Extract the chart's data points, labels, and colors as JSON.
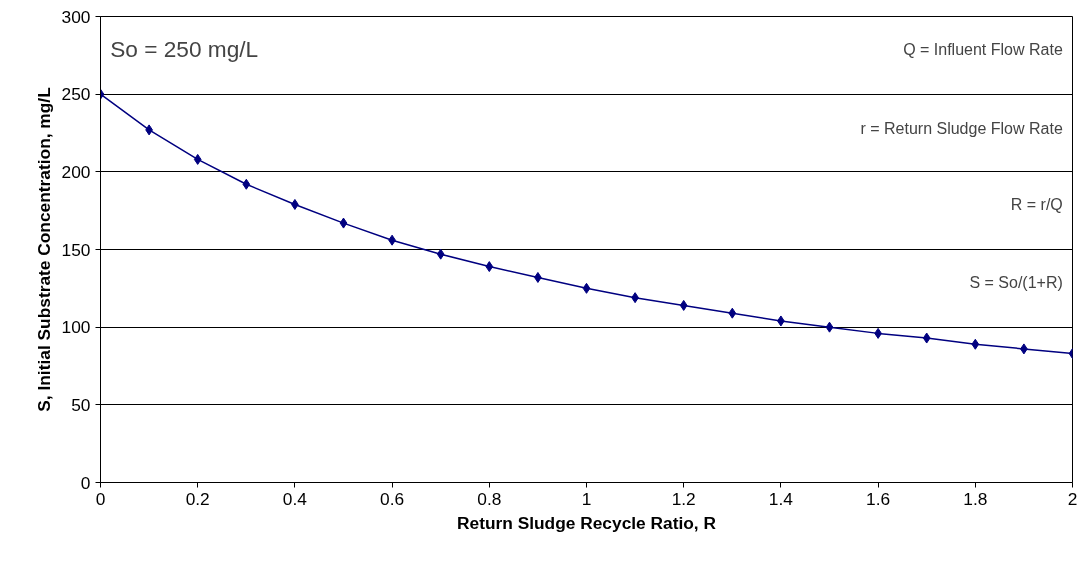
{
  "chart_data": {
    "type": "line",
    "xlabel": "Return Sludge Recycle Ratio, R",
    "ylabel": "S, Initial Substrate Concentration, mg/L",
    "x": [
      0,
      0.1,
      0.2,
      0.3,
      0.4,
      0.5,
      0.6,
      0.7,
      0.8,
      0.9,
      1,
      1.1,
      1.2,
      1.3,
      1.4,
      1.5,
      1.6,
      1.7,
      1.8,
      1.9,
      2
    ],
    "series": [
      {
        "color": "#000080",
        "values": [
          250,
          227,
          208,
          192,
          179,
          167,
          156,
          147,
          139,
          132,
          125,
          119,
          114,
          109,
          104,
          100,
          96,
          93,
          89,
          86,
          83
        ]
      }
    ],
    "xlim": [
      0,
      2
    ],
    "ylim": [
      0,
      300
    ],
    "xticks": [
      0,
      0.2,
      0.4,
      0.6,
      0.8,
      1,
      1.2,
      1.4,
      1.6,
      1.8,
      2
    ],
    "yticks": [
      0,
      50,
      100,
      150,
      200,
      250,
      300
    ],
    "grid": "y",
    "marker": "diamond",
    "line_style": "solid",
    "annotations": [
      "So = 250 mg/L",
      "Q = Influent Flow Rate",
      "r = Return Sludge Flow Rate",
      "R = r/Q",
      "S = So/(1+R)"
    ]
  }
}
